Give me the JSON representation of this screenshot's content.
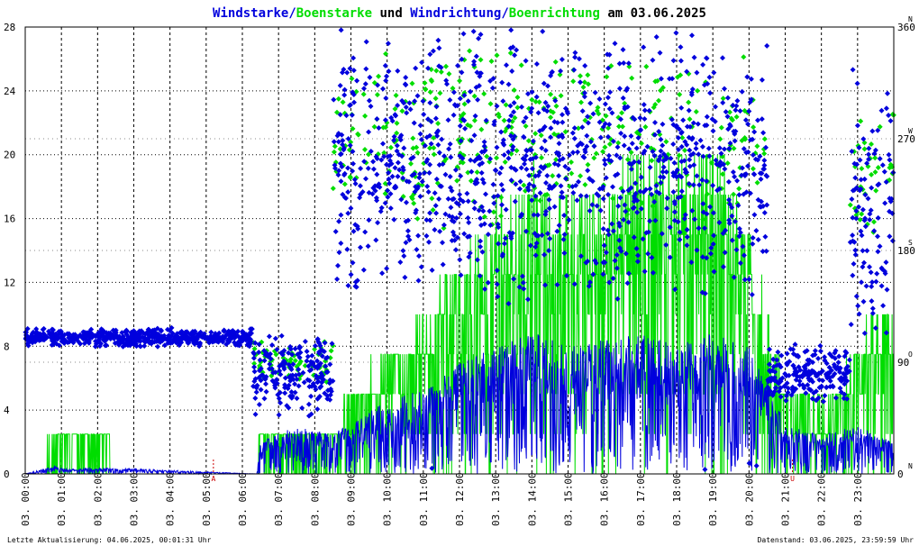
{
  "title": {
    "part1": "Windstarke/",
    "part2": "Boenstarke",
    "part3": " und ",
    "part4": "Windrichtung/",
    "part5": "Boenrichtung",
    "part6": " am 03.06.2025"
  },
  "footer": {
    "left": "Letzte Aktualisierung: 04.06.2025, 00:01:31 Uhr",
    "right": "Datenstand: 03.06.2025, 23:59:59 Uhr"
  },
  "markers": [
    {
      "label": "A",
      "hour": 5.2
    },
    {
      "label": "U",
      "hour": 21.2
    }
  ],
  "chart_data": {
    "type": "scatter",
    "x_labels": [
      "03. 00:00",
      "03. 01:00",
      "03. 02:00",
      "03. 03:00",
      "03. 04:00",
      "03. 05:00",
      "03. 06:00",
      "03. 07:00",
      "03. 08:00",
      "03. 09:00",
      "03. 10:00",
      "03. 11:00",
      "03. 12:00",
      "03. 13:00",
      "03. 14:00",
      "03. 15:00",
      "03. 16:00",
      "03. 17:00",
      "03. 18:00",
      "03. 19:00",
      "03. 20:00",
      "03. 21:00",
      "03. 22:00",
      "03. 23:00"
    ],
    "xlim": [
      0,
      24
    ],
    "y_left_ticks": [
      "0",
      "4",
      "8",
      "12",
      "16",
      "20",
      "24",
      "28"
    ],
    "ylim_left": [
      0,
      28
    ],
    "y_right_ticks": [
      "0",
      "90",
      "180",
      "270",
      "360"
    ],
    "ylim_right": [
      0,
      360
    ],
    "compass": [
      "N",
      "O",
      "S",
      "W",
      "N"
    ],
    "grid": true,
    "colors": {
      "wind": "#0000dd",
      "gust": "#00dd00",
      "grid": "#000000",
      "marker": "#cc0000"
    },
    "series": [
      {
        "name": "Windstarke",
        "kind": "line",
        "axis": "left",
        "color": "#0000dd",
        "envelope": [
          [
            0,
            0
          ],
          [
            0.8,
            0.5
          ],
          [
            1.2,
            0.3
          ],
          [
            2.3,
            0.4
          ],
          [
            6.4,
            0
          ],
          [
            6.5,
            2
          ],
          [
            7.5,
            3
          ],
          [
            8.5,
            2.5
          ],
          [
            9.5,
            4
          ],
          [
            10.5,
            5
          ],
          [
            11.5,
            6
          ],
          [
            12,
            7
          ],
          [
            13,
            8
          ],
          [
            14,
            9
          ],
          [
            15,
            8
          ],
          [
            16,
            8.5
          ],
          [
            17,
            9
          ],
          [
            18,
            8
          ],
          [
            19,
            9
          ],
          [
            20,
            8
          ],
          [
            20.5,
            6
          ],
          [
            21,
            3
          ],
          [
            22,
            2.5
          ],
          [
            23,
            3
          ],
          [
            24,
            2
          ]
        ]
      },
      {
        "name": "Boenstarke",
        "kind": "line",
        "axis": "left",
        "color": "#00dd00",
        "envelope": [
          [
            0,
            0
          ],
          [
            1.1,
            2.5
          ],
          [
            2.3,
            2.5
          ],
          [
            2.4,
            0
          ],
          [
            6.4,
            0
          ],
          [
            6.5,
            2.5
          ],
          [
            8.5,
            2.5
          ],
          [
            9,
            5
          ],
          [
            10,
            8
          ],
          [
            11,
            10
          ],
          [
            12,
            14
          ],
          [
            13,
            17
          ],
          [
            14,
            19
          ],
          [
            15,
            18
          ],
          [
            16,
            17
          ],
          [
            17,
            21
          ],
          [
            18,
            19
          ],
          [
            19,
            21
          ],
          [
            20,
            16
          ],
          [
            20.5,
            10
          ],
          [
            21,
            6
          ],
          [
            22,
            4
          ],
          [
            23,
            8
          ],
          [
            24,
            12
          ]
        ]
      },
      {
        "name": "Windrichtung",
        "kind": "points",
        "axis": "right",
        "color": "#0000dd",
        "segments": [
          [
            0,
            6.3,
            110,
            8
          ],
          [
            6.3,
            8.5,
            80,
            35
          ],
          [
            8.5,
            20.5,
            250,
            120
          ],
          [
            20.5,
            22.8,
            80,
            25
          ],
          [
            22.8,
            24,
            220,
            120
          ]
        ]
      },
      {
        "name": "Boenrichtung",
        "kind": "points",
        "axis": "right",
        "color": "#00dd00",
        "segments": [
          [
            6.3,
            8.5,
            90,
            20
          ],
          [
            8.5,
            20.5,
            270,
            80
          ],
          [
            22.8,
            24,
            240,
            60
          ]
        ]
      }
    ]
  }
}
